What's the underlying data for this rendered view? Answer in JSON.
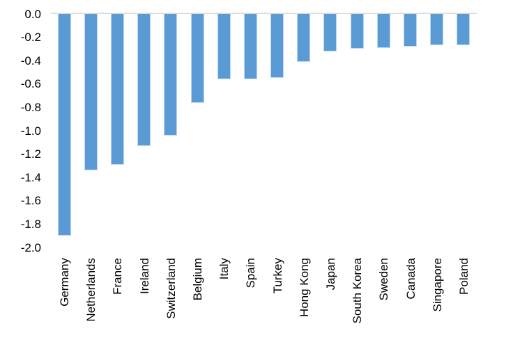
{
  "chart_data": {
    "type": "bar",
    "title": "",
    "xlabel": "",
    "ylabel": "",
    "categories": [
      "Germany",
      "Netherlands",
      "France",
      "Ireland",
      "Switzerland",
      "Belgium",
      "Italy",
      "Spain",
      "Turkey",
      "Hong Kong",
      "Japan",
      "South Korea",
      "Sweden",
      "Canada",
      "Singapore",
      "Poland"
    ],
    "values": [
      -1.9,
      -1.34,
      -1.29,
      -1.13,
      -1.04,
      -0.76,
      -0.56,
      -0.56,
      -0.55,
      -0.41,
      -0.32,
      -0.3,
      -0.29,
      -0.28,
      -0.27,
      -0.27
    ],
    "ylim": [
      -2.0,
      0.0
    ],
    "yticks": [
      "0.0",
      "-0.2",
      "-0.4",
      "-0.6",
      "-0.8",
      "-1.0",
      "-1.2",
      "-1.4",
      "-1.6",
      "-1.8",
      "-2.0"
    ],
    "legend": "none",
    "grid": "zero-axis-line-only",
    "orientation": "vertical-bars-downward",
    "x_label_rotation_degrees": -90,
    "colors": {
      "bar_fill": "#5B9BD5",
      "bar_edge": "#bdd7ee",
      "axis_line": "#d9d9d9",
      "text": "#000000",
      "background": "#ffffff"
    }
  }
}
